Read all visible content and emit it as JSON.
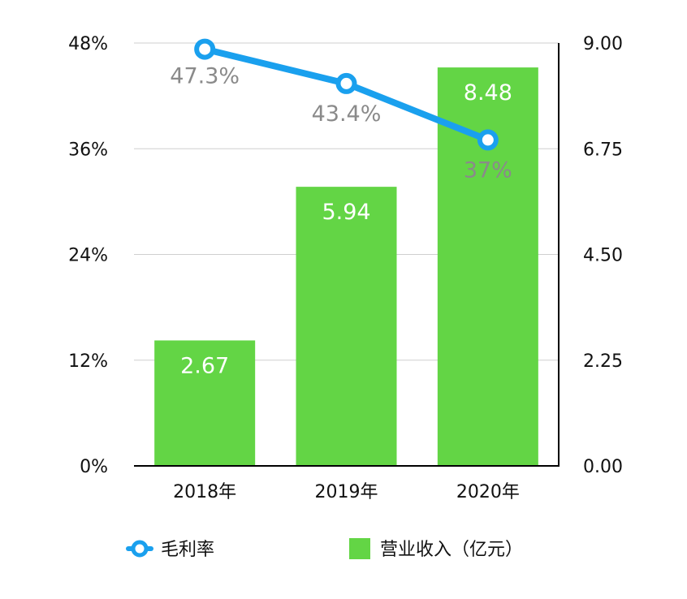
{
  "chart_data": {
    "type": "bar",
    "categories": [
      "2018年",
      "2019年",
      "2020年"
    ],
    "series": [
      {
        "name": "营业收入（亿元）",
        "type": "bar",
        "axis": "right",
        "values": [
          2.67,
          5.94,
          8.48
        ],
        "labels": [
          "2.67",
          "5.94",
          "8.48"
        ]
      },
      {
        "name": "毛利率",
        "type": "line",
        "axis": "left",
        "values": [
          47.3,
          43.4,
          37
        ],
        "labels": [
          "47.3%",
          "43.4%",
          "37%"
        ]
      }
    ],
    "y_left": {
      "ylim": [
        0,
        48
      ],
      "ticks": [
        "0%",
        "12%",
        "24%",
        "36%",
        "48%"
      ]
    },
    "y_right": {
      "ylim": [
        0,
        9
      ],
      "ticks": [
        "0.00",
        "2.25",
        "4.50",
        "6.75",
        "9.00"
      ]
    },
    "grid": true,
    "legend_position": "bottom",
    "colors": {
      "bar": "#63d545",
      "line": "#1aa0ee",
      "line_label": "#8a8a8a"
    }
  }
}
